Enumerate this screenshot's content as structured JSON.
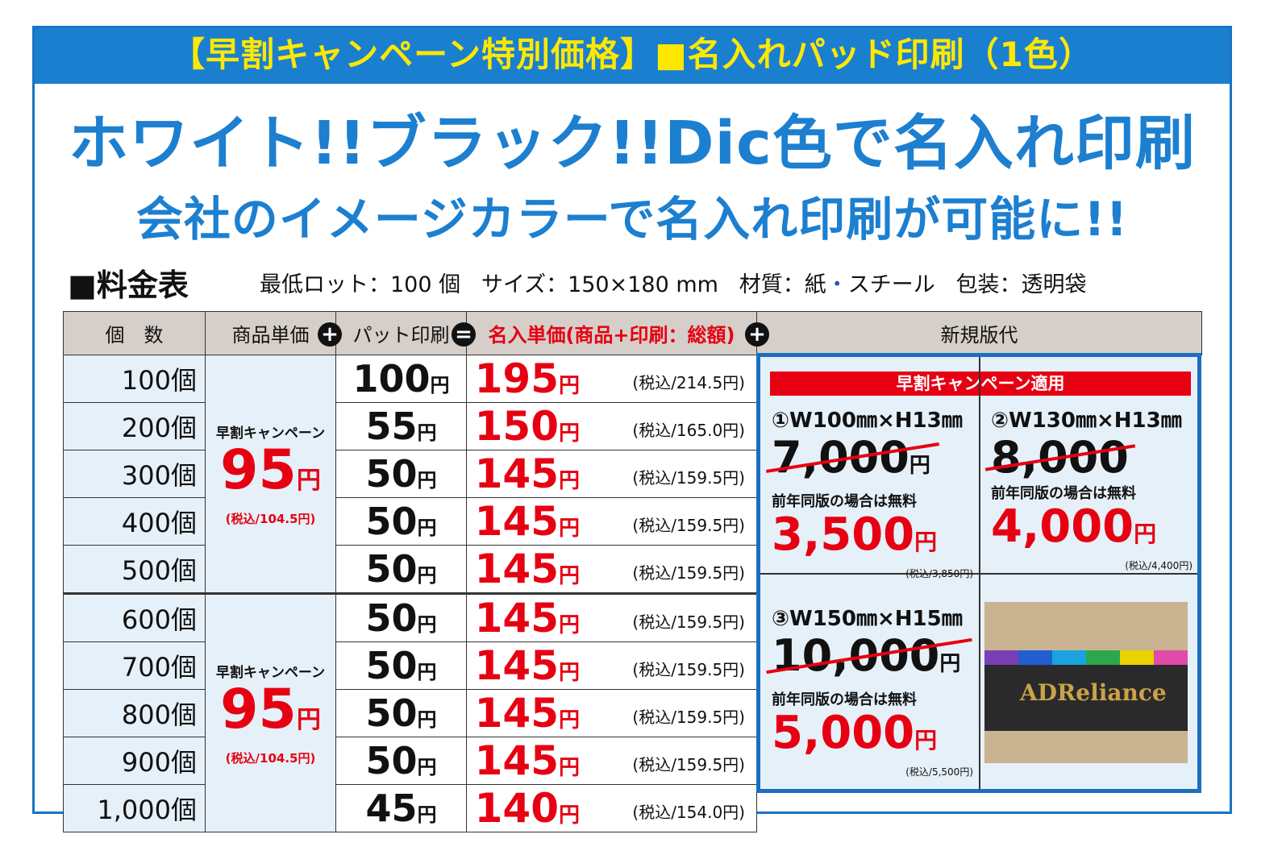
{
  "banner": "【早割キャンペーン特別価格】■名入れパッド印刷（1色）",
  "headline1": "ホワイト!!ブラック!!Dic色で名入れ印刷",
  "headline2": "会社のイメージカラーで名入れ印刷が可能に!!",
  "price_table_title": "■料金表",
  "spec": {
    "lot": "最低ロット：100 個",
    "size": "サイズ：150×180 mm",
    "material_prefix": "材質：紙",
    "material_dot": "・",
    "material_suffix": "スチール",
    "package": "包装：透明袋"
  },
  "header": {
    "qty": "個　数",
    "unit_price": "商品単価",
    "pad_print": "パット印刷",
    "total": "名入単価(商品+印刷：総額)",
    "new_plate": "新規版代",
    "plus": "+",
    "equals": "="
  },
  "campaign": {
    "label": "早割キャンペーン",
    "price": "95",
    "yen": "円",
    "tax": "(税込/104.5円)"
  },
  "rows": [
    {
      "qty": "100個",
      "pad": "100",
      "total": "195",
      "tax": "(税込/214.5円)"
    },
    {
      "qty": "200個",
      "pad": "55",
      "total": "150",
      "tax": "(税込/165.0円)"
    },
    {
      "qty": "300個",
      "pad": "50",
      "total": "145",
      "tax": "(税込/159.5円)"
    },
    {
      "qty": "400個",
      "pad": "50",
      "total": "145",
      "tax": "(税込/159.5円)"
    },
    {
      "qty": "500個",
      "pad": "50",
      "total": "145",
      "tax": "(税込/159.5円)"
    },
    {
      "qty": "600個",
      "pad": "50",
      "total": "145",
      "tax": "(税込/159.5円)"
    },
    {
      "qty": "700個",
      "pad": "50",
      "total": "145",
      "tax": "(税込/159.5円)"
    },
    {
      "qty": "800個",
      "pad": "50",
      "total": "145",
      "tax": "(税込/159.5円)"
    },
    {
      "qty": "900個",
      "pad": "50",
      "total": "145",
      "tax": "(税込/159.5円)"
    },
    {
      "qty": "1,000個",
      "pad": "45",
      "total": "140",
      "tax": "(税込/154.0円)"
    }
  ],
  "yen": "円",
  "plates": {
    "applied": "早割キャンペーン適用",
    "free_note": "前年同版の場合は無料",
    "p1": {
      "size": "①W100㎜×H13㎜",
      "old": "7,000",
      "new": "3,500",
      "tax": "(税込/3,850円)"
    },
    "p2": {
      "size": "②W130㎜×H13㎜",
      "old": "8,000",
      "new": "4,000",
      "tax": "(税込/4,400円)"
    },
    "p3": {
      "size": "③W150㎜×H15㎜",
      "old": "10,000",
      "new": "5,000",
      "tax": "(税込/5,500円)"
    }
  },
  "photo": {
    "logo": "ADReliance",
    "strip_colors": [
      "#7a3fb5",
      "#1f5fd0",
      "#1aa3e0",
      "#2aa84a",
      "#e8d200",
      "#e04aa8"
    ]
  }
}
